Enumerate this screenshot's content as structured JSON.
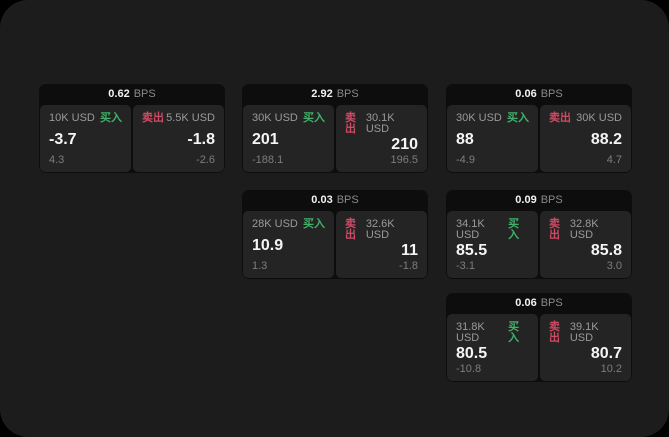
{
  "theme": {
    "outer_background": "#000000",
    "window_background": "#1c1c1c",
    "card_background": "#0d0d0d",
    "panel_background": "#242424",
    "text_primary": "#f5f5f5",
    "text_muted": "#9a9a9a",
    "buy_color": "#3fb169",
    "sell_color": "#cf4a64"
  },
  "labels": {
    "bps_unit": "BPS",
    "buy": "买入",
    "sell": "卖出"
  },
  "cards": [
    {
      "bps": "0.62",
      "buy": {
        "amount": "10K USD",
        "value": "-3.7",
        "delta": "4.3"
      },
      "sell": {
        "amount": "5.5K USD",
        "value": "-1.8",
        "delta": "-2.6"
      }
    },
    {
      "bps": "2.92",
      "buy": {
        "amount": "30K USD",
        "value": "201",
        "delta": "-188.1"
      },
      "sell": {
        "amount": "30.1K USD",
        "value": "210",
        "delta": "196.5"
      }
    },
    {
      "bps": "0.06",
      "buy": {
        "amount": "30K USD",
        "value": "88",
        "delta": "-4.9"
      },
      "sell": {
        "amount": "30K USD",
        "value": "88.2",
        "delta": "4.7"
      }
    },
    {
      "bps": "0.03",
      "buy": {
        "amount": "28K USD",
        "value": "10.9",
        "delta": "1.3"
      },
      "sell": {
        "amount": "32.6K USD",
        "value": "11",
        "delta": "-1.8"
      }
    },
    {
      "bps": "0.09",
      "buy": {
        "amount": "34.1K USD",
        "value": "85.5",
        "delta": "-3.1"
      },
      "sell": {
        "amount": "32.8K USD",
        "value": "85.8",
        "delta": "3.0"
      }
    },
    {
      "bps": "0.06",
      "buy": {
        "amount": "31.8K USD",
        "value": "80.5",
        "delta": "-10.8"
      },
      "sell": {
        "amount": "39.1K USD",
        "value": "80.7",
        "delta": "10.2"
      }
    }
  ]
}
